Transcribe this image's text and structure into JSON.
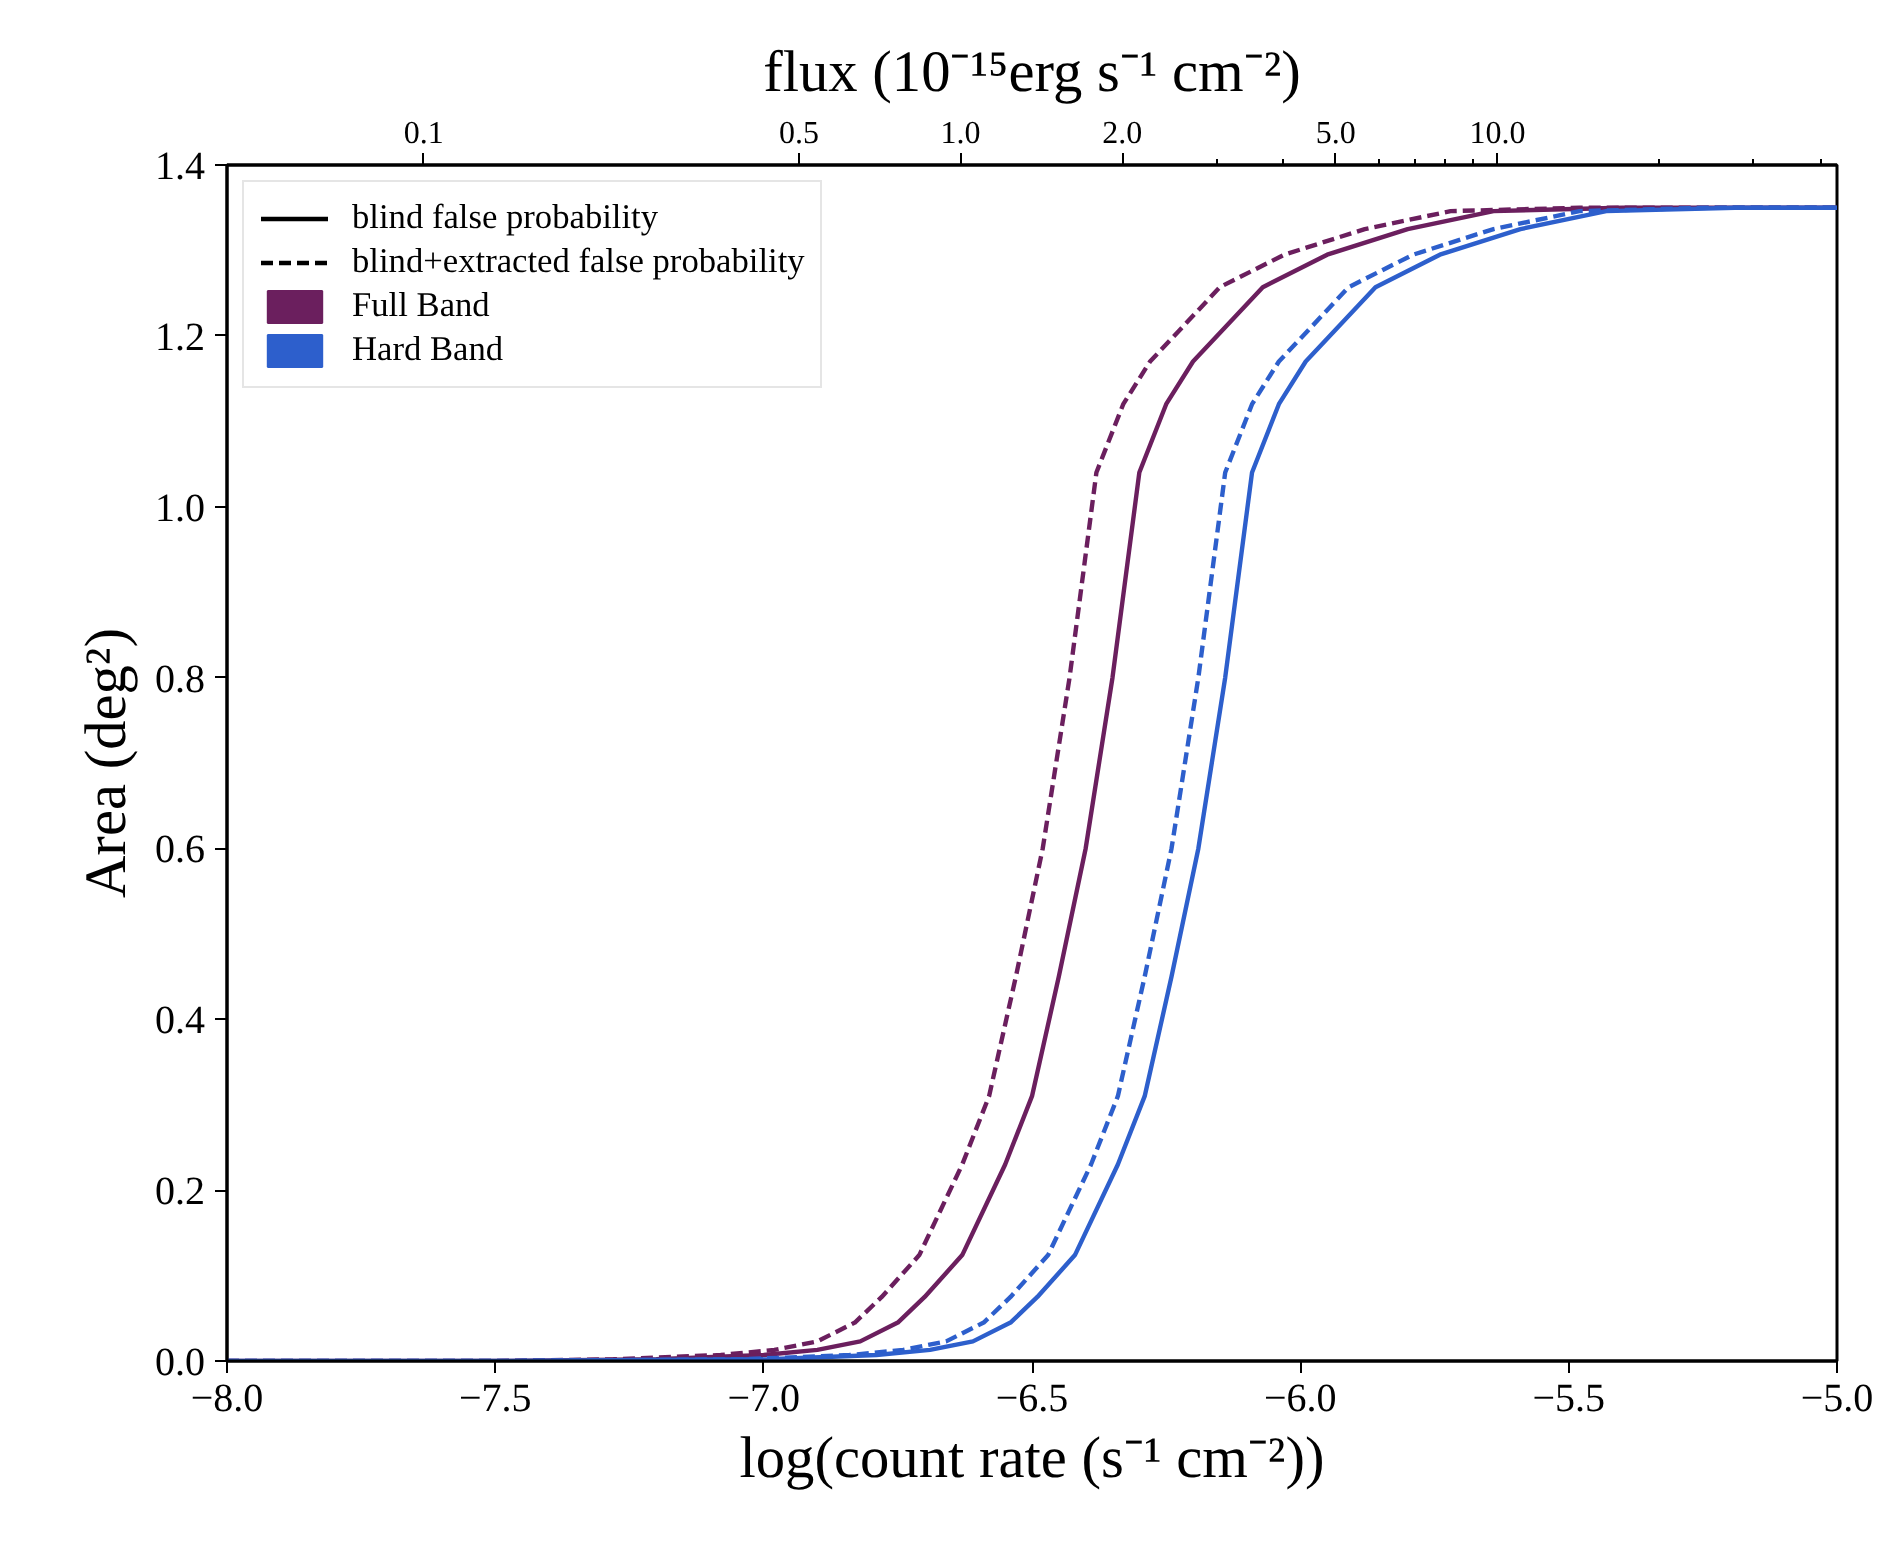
{
  "chart_data": {
    "type": "line",
    "xlabel": "log(count rate (s⁻¹ cm⁻²))",
    "ylabel": "Area (deg²)",
    "x2label": "flux (10⁻¹⁵erg s⁻¹ cm⁻²)",
    "xlim": [
      -8,
      -5
    ],
    "ylim": [
      0,
      1.4
    ],
    "xticks": [
      {
        "value": -8,
        "label": "−8.0"
      },
      {
        "value": -7.5,
        "label": "−7.5"
      },
      {
        "value": -7,
        "label": "−7.0"
      },
      {
        "value": -6.5,
        "label": "−6.5"
      },
      {
        "value": -6,
        "label": "−6.0"
      },
      {
        "value": -5.5,
        "label": "−5.5"
      },
      {
        "value": -5,
        "label": "−5.0"
      }
    ],
    "yticks": [
      {
        "value": 0,
        "label": "0.0"
      },
      {
        "value": 0.2,
        "label": "0.2"
      },
      {
        "value": 0.4,
        "label": "0.4"
      },
      {
        "value": 0.6,
        "label": "0.6"
      },
      {
        "value": 0.8,
        "label": "0.8"
      },
      {
        "value": 1.0,
        "label": "1.0"
      },
      {
        "value": 1.2,
        "label": "1.2"
      },
      {
        "value": 1.4,
        "label": "1.4"
      }
    ],
    "log": "x2",
    "x2lim": [
      0.043,
      42.9
    ],
    "x2ticks": [
      0.1,
      0.5,
      {
        "value": 1,
        "label": "1.0"
      },
      {
        "value": 2,
        "label": "2.0"
      },
      {
        "value": 5,
        "label": "5.0"
      },
      {
        "value": 10,
        "label": "10.0"
      },
      {
        "value": 3,
        "label": null
      },
      {
        "value": 4,
        "label": null
      },
      {
        "value": 6,
        "label": null
      },
      {
        "value": 7,
        "label": null
      },
      {
        "value": 8,
        "label": null
      },
      {
        "value": 9,
        "label": null
      },
      {
        "value": 20,
        "label": null
      },
      {
        "value": 30,
        "label": null
      },
      {
        "value": 40,
        "label": null
      }
    ],
    "grid": false,
    "legend": "top left",
    "series": [
      {
        "name": "blind false probability",
        "color": "#000000",
        "line_style": "solid"
      },
      {
        "name": "blind+extracted false probability",
        "color": "#000000",
        "line_style": "dashed"
      },
      {
        "name": "Full Band",
        "color": "#6b1f5e",
        "line_style": "solid",
        "x": [
          -8,
          -7.5,
          -7.2,
          -7.0,
          -6.9,
          -6.82,
          -6.75,
          -6.7,
          -6.63,
          -6.55,
          -6.5,
          -6.45,
          -6.4,
          -6.35,
          -6.3,
          -6.25,
          -6.2,
          -6.14,
          -6.07,
          -5.95,
          -5.8,
          -5.64,
          -5.4,
          -5
        ],
        "values": [
          0,
          0,
          0.002,
          0.007,
          0.013,
          0.023,
          0.045,
          0.075,
          0.124,
          0.23,
          0.31,
          0.45,
          0.6,
          0.8,
          1.04,
          1.12,
          1.17,
          1.21,
          1.257,
          1.295,
          1.325,
          1.346,
          1.35,
          1.35
        ]
      },
      {
        "color": "#6b1f5e",
        "line_style": "dashed",
        "x": [
          -8,
          -7.5,
          -7.28,
          -7.08,
          -6.98,
          -6.9,
          -6.83,
          -6.78,
          -6.71,
          -6.63,
          -6.58,
          -6.53,
          -6.48,
          -6.43,
          -6.38,
          -6.33,
          -6.28,
          -6.22,
          -6.15,
          -6.03,
          -5.88,
          -5.72,
          -5.48,
          -5
        ],
        "values": [
          0,
          0,
          0.002,
          0.007,
          0.013,
          0.023,
          0.045,
          0.075,
          0.124,
          0.23,
          0.31,
          0.45,
          0.6,
          0.8,
          1.04,
          1.12,
          1.17,
          1.21,
          1.257,
          1.295,
          1.325,
          1.346,
          1.35,
          1.35
        ]
      },
      {
        "name": "Hard Band",
        "color": "#2d5fcc",
        "line_style": "dashed",
        "x": [
          -8,
          -7.5,
          -7.04,
          -6.84,
          -6.74,
          -6.66,
          -6.59,
          -6.54,
          -6.47,
          -6.39,
          -6.34,
          -6.29,
          -6.24,
          -6.19,
          -6.14,
          -6.09,
          -6.04,
          -5.98,
          -5.91,
          -5.79,
          -5.64,
          -5.48,
          -5.24,
          -5
        ],
        "values": [
          0,
          0,
          0.002,
          0.007,
          0.013,
          0.023,
          0.045,
          0.075,
          0.124,
          0.23,
          0.31,
          0.45,
          0.6,
          0.8,
          1.04,
          1.12,
          1.17,
          1.21,
          1.257,
          1.295,
          1.325,
          1.346,
          1.35,
          1.35
        ]
      },
      {
        "color": "#2d5fcc",
        "line_style": "solid",
        "x": [
          -8,
          -7.5,
          -6.99,
          -6.79,
          -6.69,
          -6.61,
          -6.54,
          -6.49,
          -6.42,
          -6.34,
          -6.29,
          -6.24,
          -6.19,
          -6.14,
          -6.09,
          -6.04,
          -5.99,
          -5.93,
          -5.86,
          -5.74,
          -5.59,
          -5.43,
          -5.19,
          -5
        ],
        "values": [
          0,
          0,
          0.002,
          0.007,
          0.013,
          0.023,
          0.045,
          0.075,
          0.124,
          0.23,
          0.31,
          0.45,
          0.6,
          0.8,
          1.04,
          1.12,
          1.17,
          1.21,
          1.257,
          1.295,
          1.325,
          1.346,
          1.35,
          1.35
        ]
      }
    ]
  }
}
